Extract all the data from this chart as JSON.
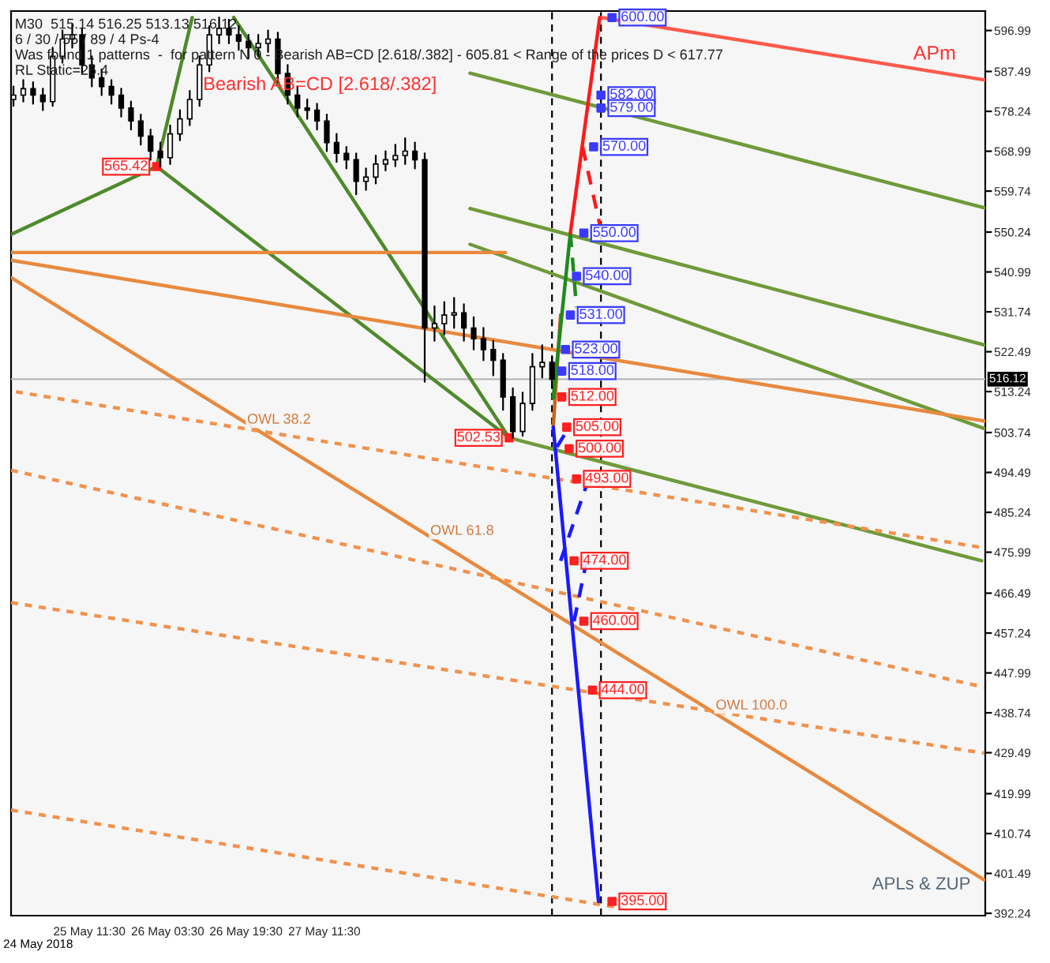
{
  "chart_data": {
    "type": "candlestick",
    "x": [
      "2018-05-24T20:00",
      "2018-05-24T22:00",
      "2018-05-25T00:00",
      "2018-05-25T02:00",
      "2018-05-25T04:00",
      "2018-05-25T06:00",
      "2018-05-25T08:00",
      "2018-05-25T10:00",
      "2018-05-25T12:00",
      "2018-05-25T14:00",
      "2018-05-25T16:00",
      "2018-05-25T18:00",
      "2018-05-25T20:00",
      "2018-05-25T22:00",
      "2018-05-26T00:00",
      "2018-05-26T02:00",
      "2018-05-26T04:00",
      "2018-05-26T06:00",
      "2018-05-26T08:00",
      "2018-05-26T10:00",
      "2018-05-26T12:00",
      "2018-05-26T14:00",
      "2018-05-26T16:00",
      "2018-05-26T18:00",
      "2018-05-26T20:00",
      "2018-05-26T22:00",
      "2018-05-27T00:00",
      "2018-05-27T02:00",
      "2018-05-27T04:00",
      "2018-05-27T06:00",
      "2018-05-27T08:00",
      "2018-05-27T10:00",
      "2018-05-27T12:00",
      "2018-05-27T14:00",
      "2018-05-27T16:00",
      "2018-05-27T18:00",
      "2018-05-27T20:00",
      "2018-05-27T22:00",
      "2018-05-28T00:00",
      "2018-05-28T02:00",
      "2018-05-28T04:00",
      "2018-05-28T06:00",
      "2018-05-28T08:00",
      "2018-05-28T10:00",
      "2018-05-28T12:00",
      "2018-05-28T14:00",
      "2018-05-28T16:00",
      "2018-05-28T18:00",
      "2018-05-28T20:00",
      "2018-05-28T22:00",
      "2018-05-29T00:00",
      "2018-05-29T02:00",
      "2018-05-29T04:00",
      "2018-05-29T06:00",
      "2018-05-29T08:00",
      "2018-05-29T10:00"
    ],
    "ohlc": [
      [
        581,
        584,
        579.5,
        582
      ],
      [
        582,
        585.5,
        580.5,
        583.5
      ],
      [
        583.5,
        585,
        580,
        582
      ],
      [
        582,
        583.5,
        578.5,
        580.5
      ],
      [
        580.5,
        593,
        579.5,
        591
      ],
      [
        591,
        597,
        589.5,
        595
      ],
      [
        595,
        598.5,
        593,
        596
      ],
      [
        596,
        597.5,
        587,
        589
      ],
      [
        589,
        591,
        584,
        586
      ],
      [
        586,
        588,
        582,
        584
      ],
      [
        584,
        585.5,
        580,
        582
      ],
      [
        582,
        583.5,
        577,
        579
      ],
      [
        579,
        580.5,
        574,
        576
      ],
      [
        576,
        577.5,
        570.5,
        572.5
      ],
      [
        572.5,
        574,
        567,
        569
      ],
      [
        569,
        571,
        565.42,
        567.5
      ],
      [
        567.5,
        575,
        566,
        573
      ],
      [
        573,
        578.5,
        571.5,
        576.5
      ],
      [
        576.5,
        583,
        575,
        581
      ],
      [
        581,
        591,
        579.5,
        589
      ],
      [
        589,
        598,
        587.5,
        596
      ],
      [
        596,
        600,
        594,
        597.5
      ],
      [
        597.5,
        599.5,
        594,
        596
      ],
      [
        596,
        598,
        592.5,
        594.5
      ],
      [
        594.5,
        596,
        590.5,
        593
      ],
      [
        593,
        596,
        591,
        594
      ],
      [
        594,
        597,
        592,
        595
      ],
      [
        595,
        596.5,
        585,
        587
      ],
      [
        587,
        589,
        580,
        582
      ],
      [
        582,
        584,
        577,
        579
      ],
      [
        579,
        581,
        576.5,
        578.5
      ],
      [
        578.5,
        580,
        574,
        576
      ],
      [
        576,
        577.5,
        569,
        571
      ],
      [
        571,
        573,
        566.5,
        568.5
      ],
      [
        568.5,
        570,
        565,
        567
      ],
      [
        567,
        568.5,
        559,
        562
      ],
      [
        562,
        565,
        560,
        563
      ],
      [
        563,
        568,
        561.5,
        566
      ],
      [
        566,
        569,
        564.5,
        567
      ],
      [
        567,
        570.5,
        565.5,
        568
      ],
      [
        568,
        572,
        566,
        569
      ],
      [
        569,
        571,
        565,
        567
      ],
      [
        567,
        568.5,
        515.5,
        528
      ],
      [
        528,
        533,
        525,
        529
      ],
      [
        529,
        534,
        526.5,
        531
      ],
      [
        531,
        535,
        528,
        531.5
      ],
      [
        531.5,
        533.5,
        525,
        528
      ],
      [
        528,
        530.5,
        523,
        525.5
      ],
      [
        525.5,
        528,
        520.5,
        523
      ],
      [
        523,
        525,
        517,
        520.5
      ],
      [
        520.5,
        522,
        509,
        512
      ],
      [
        512,
        514,
        502.53,
        504
      ],
      [
        504,
        513,
        503,
        510.5
      ],
      [
        510.5,
        522,
        509,
        519
      ],
      [
        519,
        524,
        516.5,
        520
      ],
      [
        520,
        521.5,
        514,
        516.12
      ]
    ],
    "xlim": [
      "2018-05-24T19:30",
      "2018-06-02T02:30"
    ],
    "xticks": [
      {
        "value": "2018-05-25T11:30",
        "label": "25 May 11:30"
      },
      {
        "value": "2018-05-26T03:30",
        "label": "26 May 03:30"
      },
      {
        "value": "2018-05-26T19:30",
        "label": "26 May 19:30"
      },
      {
        "value": "2018-05-27T11:30",
        "label": "27 May 11:30"
      }
    ],
    "ylim": [
      391.7,
      601.5
    ],
    "yticks": [
      392.24,
      401.49,
      410.74,
      419.99,
      429.49,
      438.74,
      447.99,
      457.24,
      466.49,
      475.99,
      485.24,
      494.49,
      503.74,
      513.24,
      522.49,
      531.74,
      540.99,
      550.24,
      559.74,
      568.99,
      578.24,
      587.49,
      596.99
    ],
    "series": [
      {
        "type": "line",
        "color": "#4f8a2a",
        "line_style": "solid",
        "x": [
          "2018-05-26T01:15",
          "2018-05-29T01:15"
        ],
        "values": [
          565.42,
          502.53
        ]
      },
      {
        "type": "line",
        "color": "#4f8a2a",
        "line_style": "solid",
        "x": [
          "2018-05-24T19:30",
          "2018-05-26T01:15"
        ],
        "values": [
          549.7,
          565.42
        ]
      },
      {
        "type": "line",
        "color": "#4f8a2a",
        "line_style": "solid",
        "x": [
          "2018-05-26T17:00",
          "2018-05-29T01:15"
        ],
        "values": [
          600,
          502.53
        ]
      },
      {
        "type": "line",
        "color": "#4f8a2a",
        "line_style": "solid",
        "x": [
          "2018-05-26T08:30",
          "2018-05-26T01:15"
        ],
        "values": [
          600,
          565.42
        ]
      },
      {
        "type": "line",
        "color": "#6f9a3a",
        "line_style": "solid",
        "x": [
          "2018-05-29T01:15",
          "2018-06-02T01:45"
        ],
        "values": [
          502.53,
          474.0
        ]
      },
      {
        "type": "line",
        "color": "#6f9a3a",
        "line_style": "solid",
        "x": [
          "2018-05-28T17:15",
          "2018-06-02T02:30"
        ],
        "values": [
          555.7,
          524.0
        ]
      },
      {
        "type": "line",
        "color": "#6f9a3a",
        "line_style": "solid",
        "x": [
          "2018-05-28T17:15",
          "2018-06-02T02:30"
        ],
        "values": [
          547.4,
          504.6
        ]
      },
      {
        "type": "line",
        "color": "#6f9a3a",
        "line_style": "solid",
        "x": [
          "2018-05-28T17:15",
          "2018-06-02T02:30"
        ],
        "values": [
          587.1,
          555.8
        ]
      },
      {
        "type": "line",
        "color": "#e8893e",
        "line_style": "solid",
        "x": [
          "2018-05-24T19:30",
          "2018-05-29T00:30"
        ],
        "values": [
          545.5,
          545.5
        ]
      },
      {
        "type": "line",
        "color": "#e8893e",
        "line_style": "solid",
        "x": [
          "2018-05-24T19:30",
          "2018-06-02T02:30"
        ],
        "values": [
          543.7,
          506.4
        ]
      },
      {
        "type": "line",
        "color": "#e8893e",
        "line_style": "solid",
        "x": [
          "2018-05-24T19:30",
          "2018-06-02T02:15"
        ],
        "values": [
          539.7,
          400.0
        ]
      },
      {
        "type": "line",
        "color": "#ff5a4a",
        "line_style": "solid",
        "x": [
          "2018-05-29T20:00",
          "2018-06-02T02:30"
        ],
        "values": [
          600,
          585.5
        ]
      },
      {
        "type": "line",
        "color": "#f0924e",
        "line_style": "dotted",
        "x": [
          "2018-05-24T20:30",
          "2018-06-02T02:15"
        ],
        "values": [
          513.2,
          477.0
        ]
      },
      {
        "type": "line",
        "color": "#f0924e",
        "line_style": "dotted",
        "x": [
          "2018-05-24T19:30",
          "2018-06-02T02:15"
        ],
        "values": [
          495.0,
          444.7
        ]
      },
      {
        "type": "line",
        "color": "#f0924e",
        "line_style": "dotted",
        "x": [
          "2018-05-24T19:30",
          "2018-06-02T02:15"
        ],
        "values": [
          464.3,
          429.4
        ]
      },
      {
        "type": "line",
        "color": "#f0924e",
        "line_style": "dotted",
        "x": [
          "2018-05-24T19:30",
          "2018-05-30T01:15"
        ],
        "values": [
          416.2,
          393.3
        ]
      },
      {
        "type": "line",
        "color": "#c8641e",
        "line_style": "solid",
        "x": [
          "2018-05-29T10:15",
          "2018-05-29T11:45"
        ],
        "values": [
          505,
          531
        ]
      },
      {
        "type": "line",
        "color": "#1e8a1e",
        "line_style": "solid",
        "x": [
          "2018-05-29T10:15",
          "2018-05-29T13:45"
        ],
        "values": [
          511.8,
          550
        ]
      },
      {
        "type": "line",
        "color": "#1e8a1e",
        "line_style": "dashed",
        "x": [
          "2018-05-29T13:45",
          "2018-05-29T15:00"
        ],
        "values": [
          550,
          532.8
        ]
      },
      {
        "type": "line",
        "color": "#ff1a1a",
        "line_style": "solid",
        "x": [
          "2018-05-29T13:45",
          "2018-05-29T19:45"
        ],
        "values": [
          550,
          600
        ]
      },
      {
        "type": "line",
        "color": "#ff1a1a",
        "line_style": "dashed",
        "x": [
          "2018-05-29T16:15",
          "2018-05-29T19:45"
        ],
        "values": [
          570,
          552
        ]
      },
      {
        "type": "line",
        "color": "#1a1aff",
        "line_style": "solid",
        "x": [
          "2018-05-29T10:15",
          "2018-05-29T19:30"
        ],
        "values": [
          505,
          395
        ]
      },
      {
        "type": "line",
        "color": "#1a1aff",
        "line_style": "dashed",
        "x": [
          "2018-05-29T11:00",
          "2018-05-29T13:30"
        ],
        "values": [
          500.4,
          505
        ]
      },
      {
        "type": "line",
        "color": "#1a1aff",
        "line_style": "dashed",
        "x": [
          "2018-05-29T11:45",
          "2018-05-29T17:00"
        ],
        "values": [
          474,
          491.4
        ]
      },
      {
        "type": "line",
        "color": "#1a1aff",
        "line_style": "dashed",
        "x": [
          "2018-05-29T14:30",
          "2018-05-29T17:00"
        ],
        "values": [
          460,
          473.6
        ]
      },
      {
        "type": "scatter",
        "marker": "square",
        "color": "#3a3aff",
        "x": [
          "2018-05-29T22:15",
          "2018-05-29T20:00",
          "2018-05-29T20:00",
          "2018-05-29T18:30",
          "2018-05-29T16:30",
          "2018-05-29T15:00",
          "2018-05-29T13:45",
          "2018-05-29T12:45",
          "2018-05-29T12:00"
        ],
        "values": [
          600,
          582,
          579,
          570,
          550,
          540,
          531,
          523,
          518
        ],
        "value_labels": [
          "600.00",
          "582.00",
          "579.00",
          "570.00",
          "550.00",
          "540.00",
          "531.00",
          "523.00",
          "518.00"
        ]
      },
      {
        "type": "scatter",
        "marker": "square",
        "color": "#ff2020",
        "x": [
          "2018-05-29T12:00",
          "2018-05-29T13:00",
          "2018-05-29T13:30",
          "2018-05-29T15:00",
          "2018-05-29T14:30",
          "2018-05-29T16:30",
          "2018-05-29T18:15",
          "2018-05-29T22:15"
        ],
        "values": [
          512,
          505,
          500,
          493,
          474,
          460,
          444,
          395
        ],
        "value_labels": [
          "512.00",
          "505.00",
          "500.00",
          "493.00",
          "474.00",
          "460.00",
          "444.00",
          "395.00"
        ]
      },
      {
        "type": "scatter",
        "marker": "square",
        "color": "#ff2020",
        "x": [
          "2018-05-26T01:15",
          "2018-05-29T01:15"
        ],
        "values": [
          565.42,
          502.53
        ],
        "value_labels": [
          "565.42",
          "502.53"
        ]
      }
    ],
    "ref_lines": [
      {
        "axis": "y",
        "value": 516.12,
        "label": "516.12",
        "color": "#b8b8b8",
        "line_style": "solid"
      },
      {
        "axis": "x",
        "value": "2018-05-29T10:00",
        "label": null,
        "color": "#000000",
        "line_style": "dashed"
      },
      {
        "axis": "x",
        "value": "2018-05-29T20:00",
        "label": null,
        "color": "#000000",
        "line_style": "dashed"
      }
    ],
    "annotations": [
      "M30  515.14 516.25 513.13 516.12",
      "6 / 30 / 55 / 89 / 4 Ps-4",
      "Was found 1 patterns  -  for pattern N 0 - Bearish AB=CD [2.618/.382] - 605.81 < Range of the prices D < 617.77",
      "RL Static=26.4",
      "APLs & ZUP",
      "Bearish AB=CD [2.618/.382]",
      "APm",
      "OWL 38.2",
      "OWL 61.8",
      "OWL 100.0",
      "24 May 2018"
    ],
    "grid": false
  }
}
